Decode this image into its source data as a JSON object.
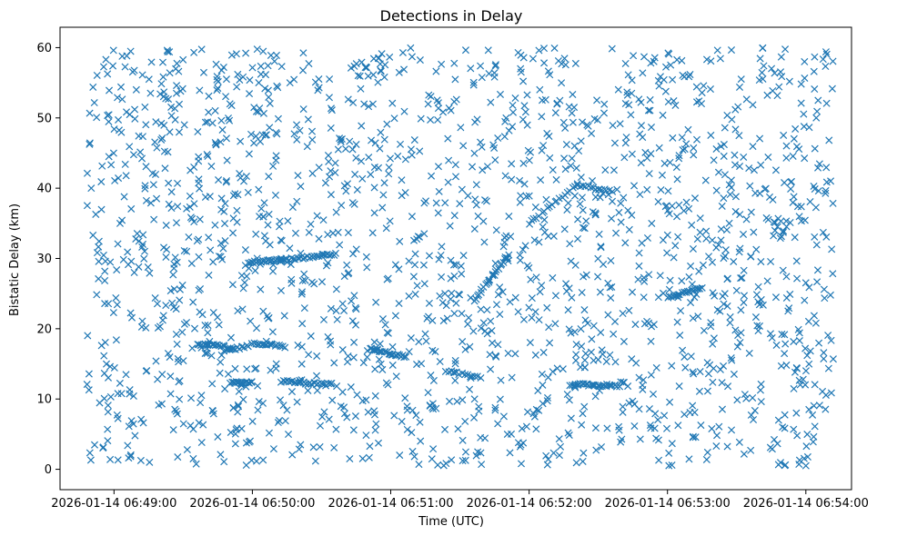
{
  "chart_data": {
    "type": "scatter",
    "title": "Detections in Delay",
    "xlabel": "Time (UTC)",
    "ylabel": "Bistatic Delay (km)",
    "marker": "x",
    "color": "#1f77b4",
    "xlim": [
      -0.39,
      5.33
    ],
    "ylim": [
      -2.9,
      62.9
    ],
    "x_unit": "minutes after 2026-01-14 06:49:00",
    "x_ticks": [
      {
        "value": 0,
        "label": "2026-01-14 06:49:00"
      },
      {
        "value": 1,
        "label": "2026-01-14 06:50:00"
      },
      {
        "value": 2,
        "label": "2026-01-14 06:51:00"
      },
      {
        "value": 3,
        "label": "2026-01-14 06:52:00"
      },
      {
        "value": 4,
        "label": "2026-01-14 06:53:00"
      },
      {
        "value": 5,
        "label": "2026-01-14 06:54:00"
      }
    ],
    "y_ticks": [
      {
        "value": 0,
        "label": "0"
      },
      {
        "value": 10,
        "label": "10"
      },
      {
        "value": 20,
        "label": "20"
      },
      {
        "value": 30,
        "label": "30"
      },
      {
        "value": 40,
        "label": "40"
      },
      {
        "value": 50,
        "label": "50"
      },
      {
        "value": 60,
        "label": "60"
      }
    ],
    "x_range": [
      -0.2,
      5.2
    ],
    "y_range": [
      0.5,
      60
    ],
    "noise_count": 1850,
    "tracks": [
      {
        "x_start": 0.84,
        "x_end": 1.0,
        "y_start": 12.3,
        "y_end": 12.3,
        "count": 16
      },
      {
        "x_start": 0.8,
        "x_end": 0.97,
        "y_start": 16.9,
        "y_end": 17.5,
        "count": 14
      },
      {
        "x_start": 0.6,
        "x_end": 0.8,
        "y_start": 17.8,
        "y_end": 17.6,
        "count": 16
      },
      {
        "x_start": 0.97,
        "x_end": 1.21,
        "y_start": 29.5,
        "y_end": 29.8,
        "count": 22
      },
      {
        "x_start": 1.21,
        "x_end": 1.6,
        "y_start": 29.8,
        "y_end": 30.6,
        "count": 28
      },
      {
        "x_start": 1.21,
        "x_end": 1.56,
        "y_start": 12.5,
        "y_end": 12.0,
        "count": 28
      },
      {
        "x_start": 1.0,
        "x_end": 1.23,
        "y_start": 18.0,
        "y_end": 17.5,
        "count": 18
      },
      {
        "x_start": 1.85,
        "x_end": 2.11,
        "y_start": 17.1,
        "y_end": 16.0,
        "count": 24
      },
      {
        "x_start": 2.6,
        "x_end": 2.85,
        "y_start": 24.0,
        "y_end": 30.5,
        "count": 22
      },
      {
        "x_start": 3.0,
        "x_end": 3.35,
        "y_start": 35.0,
        "y_end": 40.5,
        "count": 20
      },
      {
        "x_start": 3.35,
        "x_end": 3.6,
        "y_start": 40.5,
        "y_end": 39.5,
        "count": 14
      },
      {
        "x_start": 3.3,
        "x_end": 3.65,
        "y_start": 12.1,
        "y_end": 11.9,
        "count": 30
      },
      {
        "x_start": 4.0,
        "x_end": 4.25,
        "y_start": 24.5,
        "y_end": 25.8,
        "count": 20
      },
      {
        "x_start": 2.4,
        "x_end": 2.65,
        "y_start": 14.0,
        "y_end": 13.0,
        "count": 14
      }
    ]
  }
}
